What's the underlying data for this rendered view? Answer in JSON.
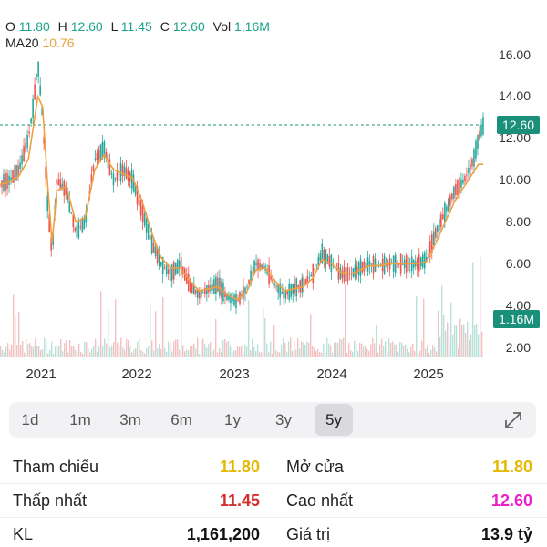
{
  "ohlc": {
    "o_label": "O",
    "o_value": "11.80",
    "h_label": "H",
    "h_value": "12.60",
    "l_label": "L",
    "l_value": "11.45",
    "c_label": "C",
    "c_value": "12.60",
    "vol_label": "Vol",
    "vol_value": "1,16M"
  },
  "ma": {
    "label": "MA20",
    "value": "10.76"
  },
  "current_price_tag": "12.60",
  "volume_tag": "1.16M",
  "y_ticks": [
    "16.00",
    "14.00",
    "12.00",
    "10.00",
    "8.00",
    "6.00",
    "4.00",
    "2.00"
  ],
  "x_ticks": [
    "2021",
    "2022",
    "2023",
    "2024",
    "2025"
  ],
  "ranges": [
    {
      "label": "1d"
    },
    {
      "label": "1m"
    },
    {
      "label": "3m"
    },
    {
      "label": "6m"
    },
    {
      "label": "1y"
    },
    {
      "label": "3y"
    },
    {
      "label": "5y"
    }
  ],
  "active_range": "5y",
  "stats": {
    "tham_chieu_label": "Tham chiếu",
    "tham_chieu_value": "11.80",
    "mo_cua_label": "Mở cửa",
    "mo_cua_value": "11.80",
    "thap_nhat_label": "Thấp nhất",
    "thap_nhat_value": "11.45",
    "cao_nhat_label": "Cao nhất",
    "cao_nhat_value": "12.60",
    "kl_label": "KL",
    "kl_value": "1,161,200",
    "gia_tri_label": "Giá trị",
    "gia_tri_value": "13.9 tỷ"
  },
  "colors": {
    "up": "#26a69a",
    "down": "#ef5350",
    "ma": "#f0a040",
    "ref": "#e6b800",
    "low": "#d32f2f",
    "high": "#e91ec8",
    "tag": "#1a8f7a"
  },
  "chart_data": {
    "type": "line",
    "ylim": [
      2,
      16
    ],
    "x": [
      2020.5,
      2020.6,
      2020.7,
      2020.8,
      2020.85,
      2020.9,
      2020.95,
      2021.0,
      2021.05,
      2021.1,
      2021.2,
      2021.3,
      2021.4,
      2021.5,
      2021.6,
      2021.7,
      2021.8,
      2021.9,
      2022.0,
      2022.1,
      2022.2,
      2022.3,
      2022.4,
      2022.5,
      2022.6,
      2022.7,
      2022.8,
      2022.9,
      2023.0,
      2023.1,
      2023.2,
      2023.3,
      2023.4,
      2023.5,
      2023.6,
      2023.7,
      2023.8,
      2023.9,
      2024.0,
      2024.1,
      2024.2,
      2024.3,
      2024.4,
      2024.5,
      2024.6,
      2024.7,
      2024.8,
      2024.9,
      2025.0,
      2025.1,
      2025.2,
      2025.3,
      2025.4,
      2025.5,
      2025.55,
      2025.6
    ],
    "price": [
      9.8,
      10.0,
      10.5,
      12.0,
      13.5,
      15.6,
      13.0,
      9.0,
      6.5,
      10.0,
      9.5,
      7.5,
      8.0,
      11.0,
      11.5,
      10.0,
      10.5,
      10.0,
      8.5,
      7.0,
      6.0,
      5.5,
      6.0,
      5.0,
      4.5,
      4.8,
      5.0,
      4.4,
      4.2,
      4.8,
      6.0,
      5.8,
      5.0,
      4.5,
      4.8,
      5.0,
      5.5,
      6.5,
      6.0,
      5.5,
      5.5,
      5.8,
      6.0,
      5.9,
      6.0,
      6.0,
      6.0,
      6.0,
      6.2,
      7.5,
      8.5,
      9.5,
      10.0,
      11.0,
      12.0,
      12.6
    ],
    "ma20": [
      9.8,
      9.9,
      10.2,
      11.0,
      12.5,
      14.0,
      13.5,
      10.0,
      7.0,
      9.5,
      9.7,
      8.0,
      8.2,
      10.5,
      11.2,
      10.5,
      10.3,
      10.1,
      9.0,
      7.5,
      6.3,
      5.8,
      5.8,
      5.2,
      4.7,
      4.8,
      4.9,
      4.5,
      4.3,
      4.6,
      5.7,
      5.8,
      5.2,
      4.7,
      4.8,
      4.9,
      5.3,
      6.2,
      6.0,
      5.6,
      5.5,
      5.7,
      5.9,
      5.9,
      6.0,
      6.0,
      6.0,
      6.0,
      6.1,
      7.0,
      8.0,
      9.0,
      9.7,
      10.4,
      10.76,
      10.76
    ],
    "volume_max_label": "1.16M"
  }
}
